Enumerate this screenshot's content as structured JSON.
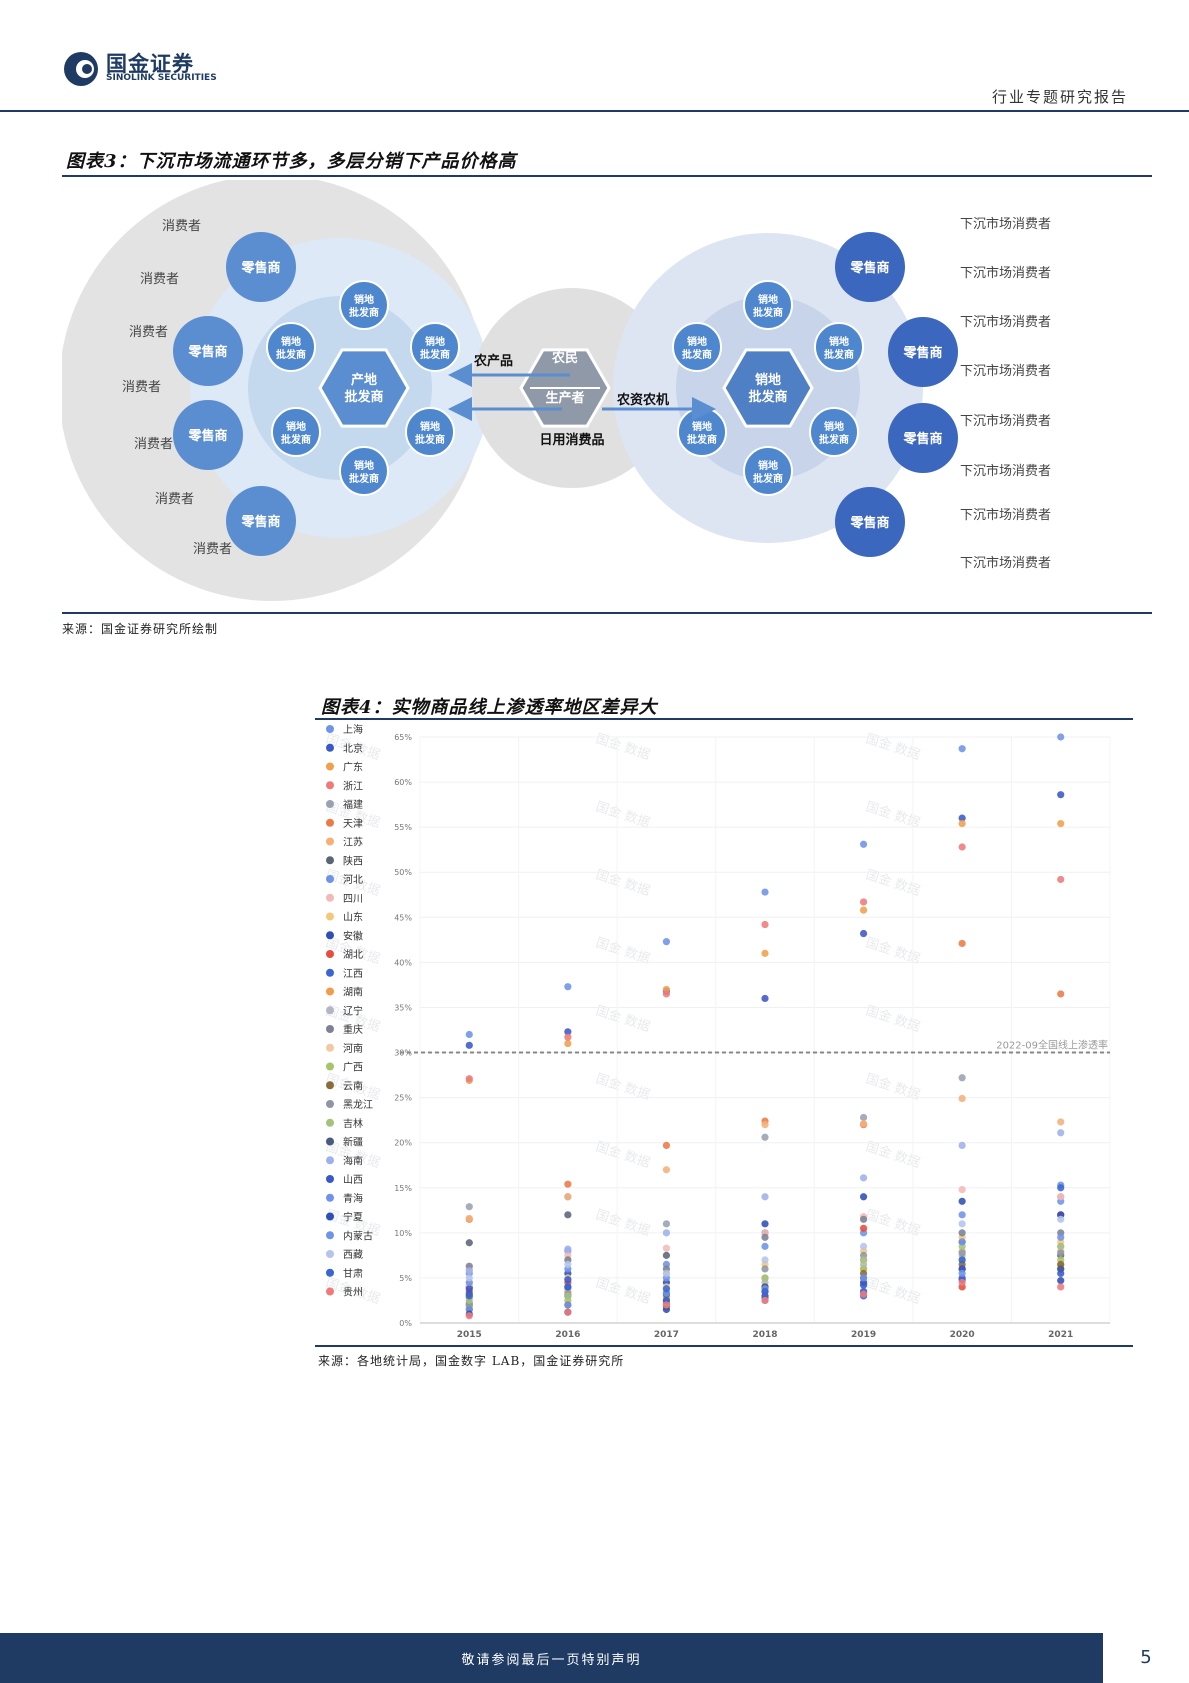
{
  "header": {
    "logo_cn": "国金证券",
    "logo_en": "SINOLINK SECURITIES",
    "report_type": "行业专题研究报告"
  },
  "figure3": {
    "title": "图表3：下沉市场流通环节多，多层分销下产品价格高",
    "left_consumer_label": "消费者",
    "right_consumer_label": "下沉市场消费者",
    "retailer_label": "零售商",
    "regional_wholesaler_label_1": "销地",
    "regional_wholesaler_label_2": "批发商",
    "origin_wholesaler_label_1": "产地",
    "origin_wholesaler_label_2": "批发商",
    "farmer_label": "农民",
    "producer_label": "生产者",
    "arrow_farm_products": "农产品",
    "arrow_daily_goods": "日用消费品",
    "arrow_farm_inputs": "农资农机",
    "source": "来源：国金证券研究所绘制"
  },
  "figure4": {
    "title": "图表4：实物商品线上渗透率地区差异大",
    "source": "来源：各地统计局，国金数字 LAB，国金证券研究所",
    "watermark": "国金 数据"
  },
  "chart_data": {
    "type": "scatter",
    "title": "图表4：实物商品线上渗透率地区差异大",
    "x": [
      "2015",
      "2016",
      "2017",
      "2018",
      "2019",
      "2020",
      "2021"
    ],
    "ylim": [
      0,
      65
    ],
    "yticks": [
      "0%",
      "5%",
      "10%",
      "15%",
      "20%",
      "25%",
      "30%",
      "35%",
      "40%",
      "45%",
      "50%",
      "55%",
      "60%",
      "65%"
    ],
    "reference_line": {
      "value": 30,
      "label": "2022-09全国线上渗透率"
    },
    "series": [
      {
        "name": "上海",
        "color": "#6f93e8",
        "values": [
          32.0,
          37.3,
          42.3,
          47.8,
          53.1,
          63.7,
          65.0
        ]
      },
      {
        "name": "北京",
        "color": "#3a58c9",
        "values": [
          30.8,
          32.3,
          36.8,
          36.0,
          43.2,
          56.0,
          58.6
        ]
      },
      {
        "name": "广东",
        "color": "#f0a04b",
        "values": [
          26.9,
          31.0,
          37.0,
          41.0,
          45.8,
          55.4,
          55.4
        ]
      },
      {
        "name": "浙江",
        "color": "#ef7a7a",
        "values": [
          27.1,
          31.7,
          36.5,
          44.2,
          46.7,
          52.8,
          49.2
        ]
      },
      {
        "name": "福建",
        "color": "#9aa1b0",
        "values": [
          12.9,
          14.0,
          11.0,
          20.6,
          22.8,
          27.2,
          14.0
        ]
      },
      {
        "name": "天津",
        "color": "#ec7a45",
        "values": [
          11.5,
          15.4,
          19.7,
          22.4,
          22.0,
          42.1,
          36.5
        ]
      },
      {
        "name": "江苏",
        "color": "#f5b07a",
        "values": [
          11.6,
          14.0,
          17.0,
          22.0,
          22.1,
          24.9,
          22.3
        ]
      },
      {
        "name": "陕西",
        "color": "#5c6478",
        "values": [
          8.9,
          12.0,
          7.5,
          10.0,
          7.0,
          9.0,
          7.5
        ]
      },
      {
        "name": "河北",
        "color": "#6f93e8",
        "values": [
          5.5,
          8.0,
          6.5,
          8.5,
          10.0,
          12.0,
          13.5
        ]
      },
      {
        "name": "四川",
        "color": "#f5b8b8",
        "values": [
          6.0,
          7.5,
          8.3,
          10.0,
          11.8,
          14.8,
          14.0
        ]
      },
      {
        "name": "山东",
        "color": "#f5c77a",
        "values": [
          4.5,
          7.0,
          5.5,
          6.5,
          8.0,
          9.5,
          9.0
        ]
      },
      {
        "name": "安徽",
        "color": "#2f4fb5",
        "values": [
          4.0,
          5.5,
          4.5,
          3.5,
          4.5,
          4.8,
          4.7
        ]
      },
      {
        "name": "湖北",
        "color": "#e84c3d",
        "values": [
          3.5,
          4.5,
          3.0,
          4.0,
          10.5,
          4.0,
          12.0
        ]
      },
      {
        "name": "江西",
        "color": "#3a66d4",
        "values": [
          2.0,
          3.0,
          2.0,
          2.8,
          3.0,
          5.0,
          6.0
        ]
      },
      {
        "name": "湖南",
        "color": "#f39a4b",
        "values": [
          2.8,
          3.5,
          2.5,
          3.0,
          6.0,
          6.0,
          6.5
        ]
      },
      {
        "name": "辽宁",
        "color": "#b0b6c3",
        "values": [
          3.0,
          3.8,
          3.5,
          4.5,
          6.5,
          7.5,
          8.5
        ]
      },
      {
        "name": "重庆",
        "color": "#7b8296",
        "values": [
          6.3,
          7.0,
          6.0,
          9.5,
          11.5,
          10.0,
          10.0
        ]
      },
      {
        "name": "河南",
        "color": "#f5c9a0",
        "values": [
          4.2,
          5.0,
          4.0,
          5.0,
          7.0,
          8.0,
          8.0
        ]
      },
      {
        "name": "广西",
        "color": "#a7c46a",
        "values": [
          1.8,
          2.5,
          2.8,
          5.0,
          6.0,
          7.0,
          7.0
        ]
      },
      {
        "name": "云南",
        "color": "#8a6b3a",
        "values": [
          1.5,
          2.0,
          1.8,
          4.0,
          5.5,
          6.5,
          6.5
        ]
      },
      {
        "name": "黑龙江",
        "color": "#8e95a6",
        "values": [
          2.2,
          3.2,
          2.2,
          6.0,
          7.5,
          7.8,
          7.8
        ]
      },
      {
        "name": "吉林",
        "color": "#a6c07e",
        "values": [
          2.5,
          3.0,
          3.0,
          5.0,
          7.0,
          8.5,
          8.5
        ]
      },
      {
        "name": "新疆",
        "color": "#4a5b80",
        "values": [
          3.2,
          4.0,
          3.2,
          4.0,
          5.0,
          6.0,
          6.0
        ]
      },
      {
        "name": "海南",
        "color": "#9fb1ea",
        "values": [
          5.8,
          8.2,
          10.0,
          14.0,
          16.1,
          19.7,
          21.1
        ]
      },
      {
        "name": "山西",
        "color": "#3a58c9",
        "values": [
          3.8,
          4.8,
          2.5,
          3.0,
          4.2,
          6.0,
          5.5
        ]
      },
      {
        "name": "青海",
        "color": "#6f93e8",
        "values": [
          1.5,
          2.0,
          3.3,
          2.5,
          3.5,
          5.5,
          15.3
        ]
      },
      {
        "name": "宁夏",
        "color": "#2f4fb5",
        "values": [
          1.0,
          1.2,
          1.5,
          11.0,
          14.0,
          13.5,
          12.0
        ]
      },
      {
        "name": "内蒙古",
        "color": "#6f93e8",
        "values": [
          4.5,
          6.0,
          5.0,
          3.8,
          5.0,
          9.0,
          9.5
        ]
      },
      {
        "name": "西藏",
        "color": "#b4c4ef",
        "values": [
          5.0,
          6.5,
          5.5,
          7.0,
          8.5,
          11.0,
          11.5
        ]
      },
      {
        "name": "甘肃",
        "color": "#3a66d4",
        "values": [
          3.0,
          4.0,
          3.8,
          3.5,
          3.5,
          7.0,
          15.0
        ]
      },
      {
        "name": "贵州",
        "color": "#ef7a7a",
        "values": [
          0.8,
          1.2,
          2.0,
          2.5,
          3.2,
          4.5,
          4.0
        ]
      }
    ]
  },
  "footer": {
    "disclaimer": "敬请参阅最后一页特别声明",
    "page_number": "5"
  }
}
